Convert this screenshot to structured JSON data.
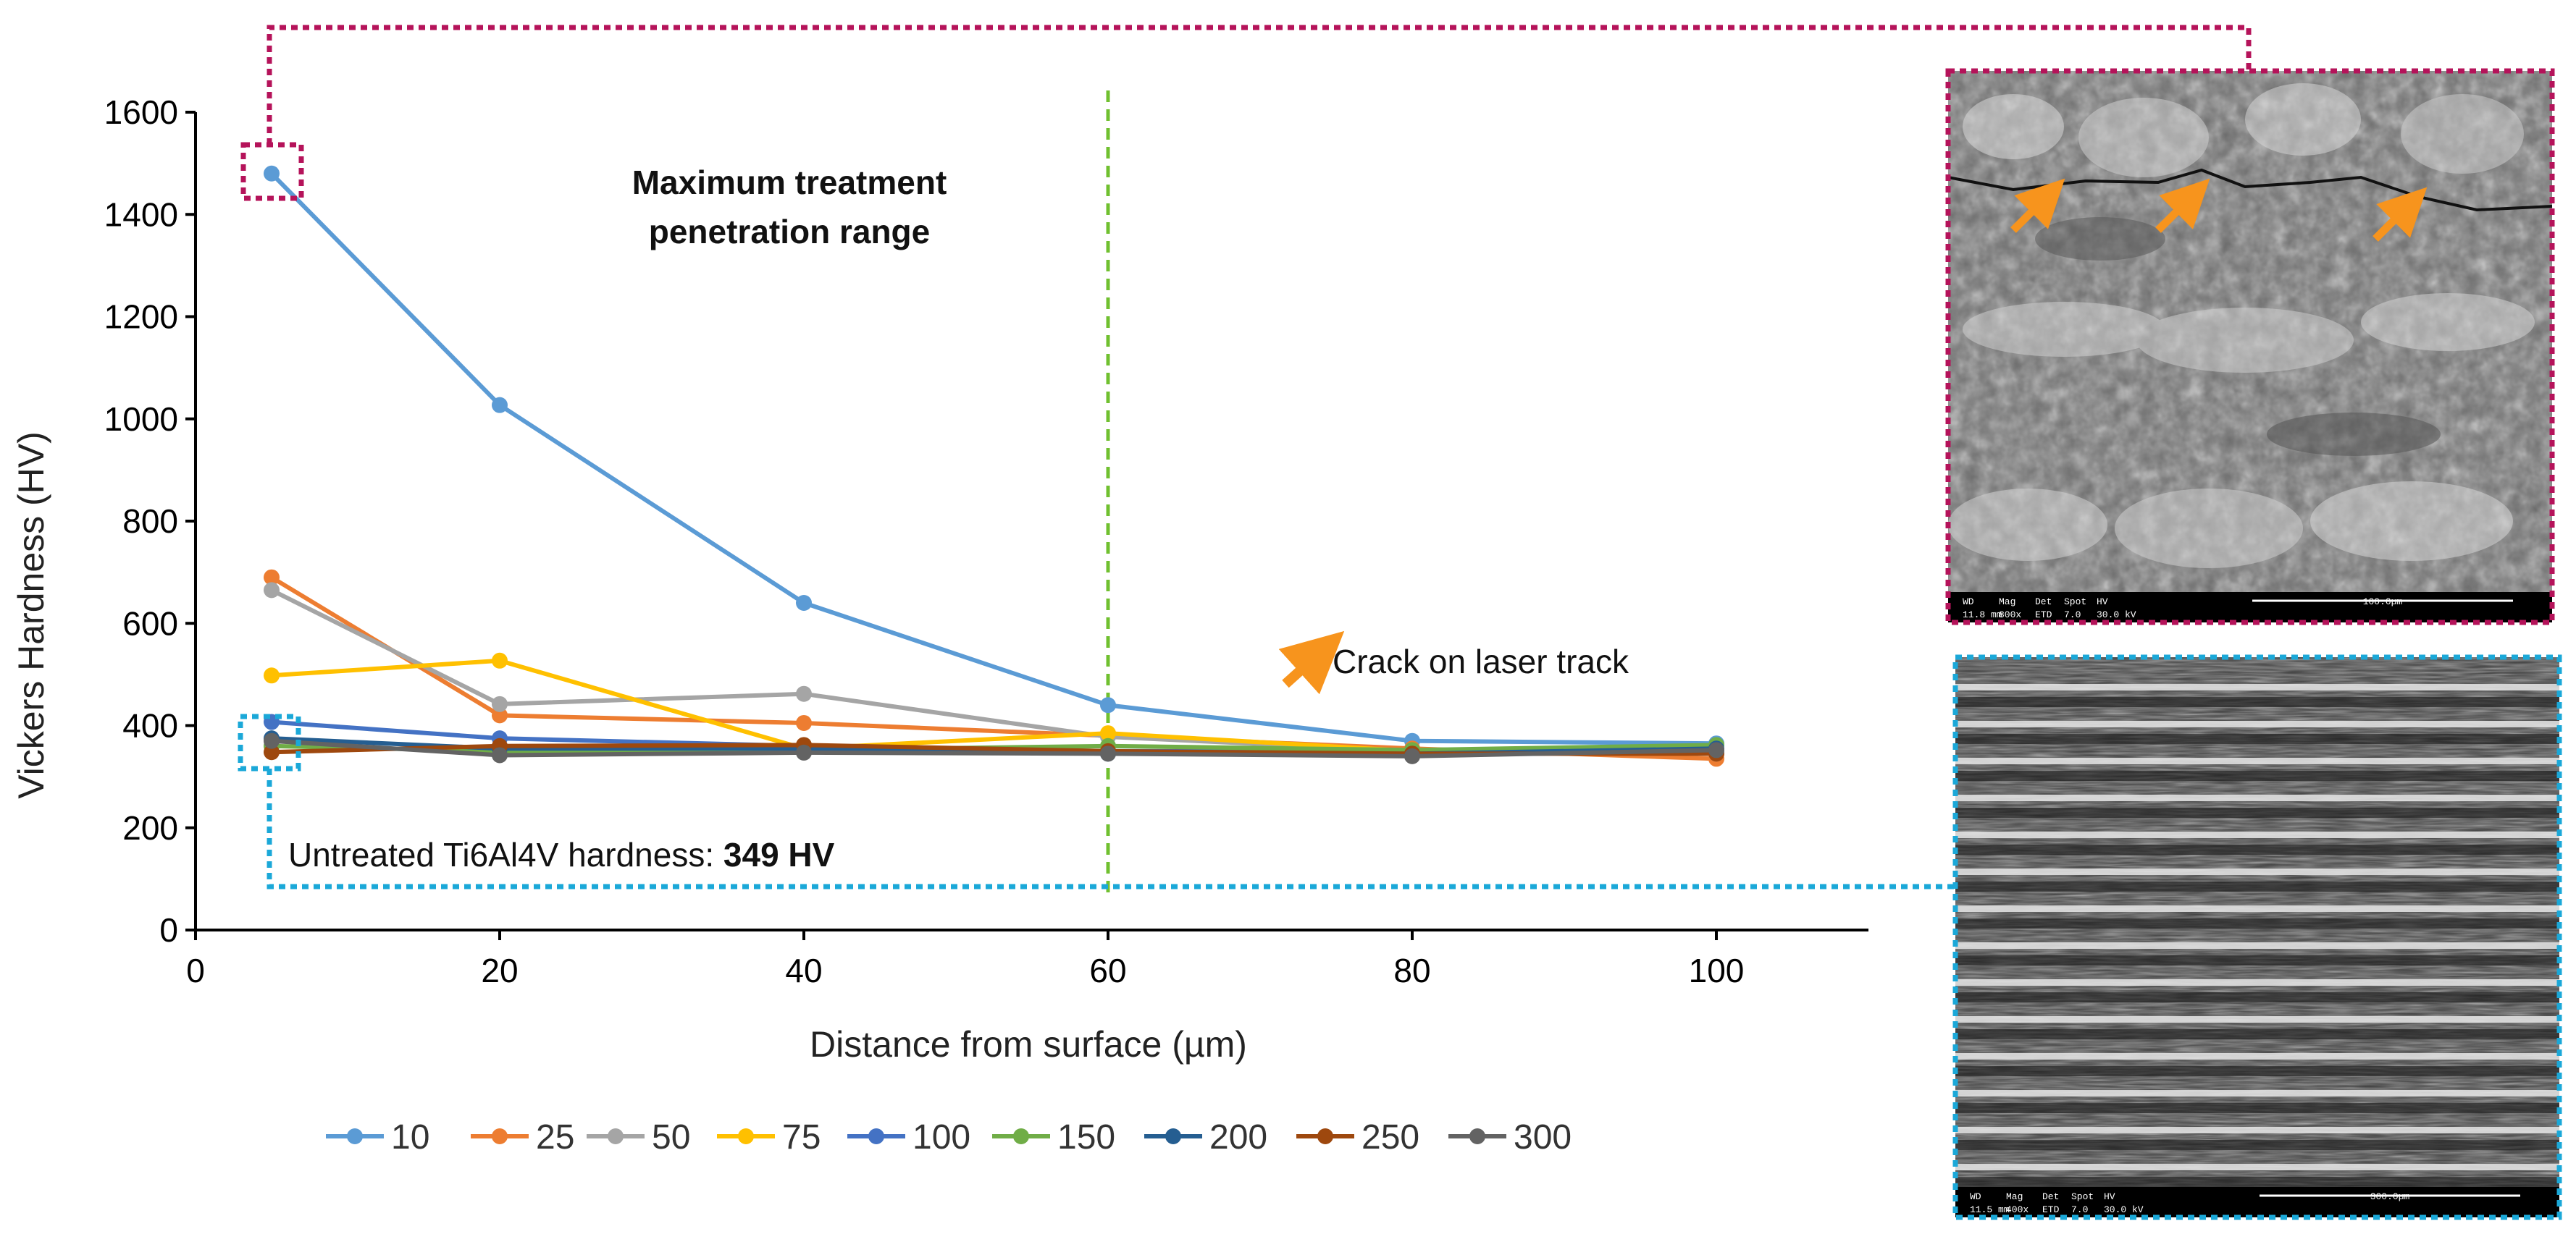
{
  "chart_data": {
    "type": "line",
    "xlabel": "Distance from surface (µm)",
    "ylabel": "Vickers Hardness (HV)",
    "xlim": [
      0,
      110
    ],
    "ylim": [
      0,
      1600
    ],
    "xticks": [
      0,
      20,
      40,
      60,
      80,
      100
    ],
    "yticks": [
      0,
      200,
      400,
      600,
      800,
      1000,
      1200,
      1400,
      1600
    ],
    "grid": false,
    "legend_position": "bottom",
    "series": [
      {
        "name": "10",
        "color": "#5b9bd5",
        "x": [
          5,
          20,
          40,
          60,
          80,
          100
        ],
        "values": [
          1480,
          1027,
          640,
          440,
          370,
          365
        ]
      },
      {
        "name": "25",
        "color": "#ed7d31",
        "x": [
          5,
          20,
          40,
          60,
          80,
          100
        ],
        "values": [
          690,
          420,
          405,
          380,
          355,
          335
        ]
      },
      {
        "name": "50",
        "color": "#a5a5a5",
        "x": [
          5,
          20,
          40,
          60,
          80,
          100
        ],
        "values": [
          665,
          442,
          462,
          378,
          350,
          345
        ]
      },
      {
        "name": "75",
        "color": "#ffc000",
        "x": [
          5,
          20,
          40,
          60,
          80,
          100
        ],
        "values": [
          498,
          527,
          355,
          385,
          350,
          350
        ]
      },
      {
        "name": "100",
        "color": "#4472c4",
        "x": [
          5,
          20,
          40,
          60,
          80,
          100
        ],
        "values": [
          407,
          375,
          360,
          350,
          350,
          350
        ]
      },
      {
        "name": "150",
        "color": "#70ad47",
        "x": [
          5,
          20,
          40,
          60,
          80,
          100
        ],
        "values": [
          360,
          350,
          352,
          360,
          352,
          362
        ]
      },
      {
        "name": "200",
        "color": "#255e91",
        "x": [
          5,
          20,
          40,
          60,
          80,
          100
        ],
        "values": [
          375,
          355,
          355,
          345,
          345,
          355
        ]
      },
      {
        "name": "250",
        "color": "#9e480e",
        "x": [
          5,
          20,
          40,
          60,
          80,
          100
        ],
        "values": [
          348,
          360,
          362,
          350,
          345,
          345
        ]
      },
      {
        "name": "300",
        "color": "#636363",
        "x": [
          5,
          20,
          40,
          60,
          80,
          100
        ],
        "values": [
          370,
          342,
          347,
          345,
          340,
          352
        ]
      }
    ],
    "annotations": {
      "penetration_line_x": 60,
      "penetration_line_color": "#70c030",
      "penetration_label_line1": "Maximum treatment",
      "penetration_label_line2": "penetration range",
      "untreated_prefix": "Untreated Ti6Al4V hardness: ",
      "untreated_value": "349 HV",
      "crack_label": "Crack on laser track",
      "crack_arrow_color": "#f7941d",
      "top_highlight_color": "#b5135a",
      "bottom_highlight_color": "#1ba8d8"
    }
  },
  "sem_images": {
    "top": {
      "labels": [
        "WD",
        "Mag",
        "Det",
        "Spot",
        "HV",
        "11.8 mm",
        "800x",
        "ETD",
        "7.0",
        "30.0 kV",
        "100.0µm"
      ]
    },
    "bottom": {
      "labels": [
        "WD",
        "Mag",
        "Det",
        "Spot",
        "HV",
        "11.5 mm",
        "400x",
        "ETD",
        "7.0",
        "30.0 kV",
        "300.0µm"
      ]
    }
  }
}
